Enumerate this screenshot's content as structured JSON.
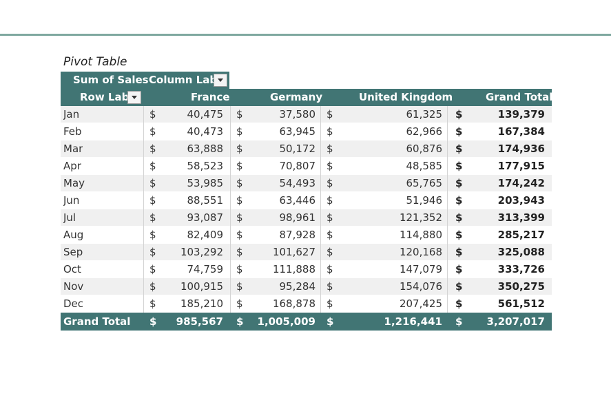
{
  "title": "Pivot Table",
  "header": {
    "values_label": "Sum of Sales",
    "column_labels": "Column Lab",
    "row_labels": "Row Lab",
    "columns": [
      "France",
      "Germany",
      "United Kingdom",
      "Grand Total"
    ]
  },
  "currency_symbol": "$",
  "rows": [
    {
      "label": "Jan",
      "france": "40,475",
      "germany": "37,580",
      "uk": "61,325",
      "total": "139,379"
    },
    {
      "label": "Feb",
      "france": "40,473",
      "germany": "63,945",
      "uk": "62,966",
      "total": "167,384"
    },
    {
      "label": "Mar",
      "france": "63,888",
      "germany": "50,172",
      "uk": "60,876",
      "total": "174,936"
    },
    {
      "label": "Apr",
      "france": "58,523",
      "germany": "70,807",
      "uk": "48,585",
      "total": "177,915"
    },
    {
      "label": "May",
      "france": "53,985",
      "germany": "54,493",
      "uk": "65,765",
      "total": "174,242"
    },
    {
      "label": "Jun",
      "france": "88,551",
      "germany": "63,446",
      "uk": "51,946",
      "total": "203,943"
    },
    {
      "label": "Jul",
      "france": "93,087",
      "germany": "98,961",
      "uk": "121,352",
      "total": "313,399"
    },
    {
      "label": "Aug",
      "france": "82,409",
      "germany": "87,928",
      "uk": "114,880",
      "total": "285,217"
    },
    {
      "label": "Sep",
      "france": "103,292",
      "germany": "101,627",
      "uk": "120,168",
      "total": "325,088"
    },
    {
      "label": "Oct",
      "france": "74,759",
      "germany": "111,888",
      "uk": "147,079",
      "total": "333,726"
    },
    {
      "label": "Nov",
      "france": "100,915",
      "germany": "95,284",
      "uk": "154,076",
      "total": "350,275"
    },
    {
      "label": "Dec",
      "france": "185,210",
      "germany": "168,878",
      "uk": "207,425",
      "total": "561,512"
    }
  ],
  "grand_total": {
    "label": "Grand Total",
    "france": "985,567",
    "germany": "1,005,009",
    "uk": "1,216,441",
    "total": "3,207,017"
  },
  "colors": {
    "header_bg": "#417574",
    "alt_row": "#f0f0f0",
    "rule": "#7fa8a0"
  }
}
